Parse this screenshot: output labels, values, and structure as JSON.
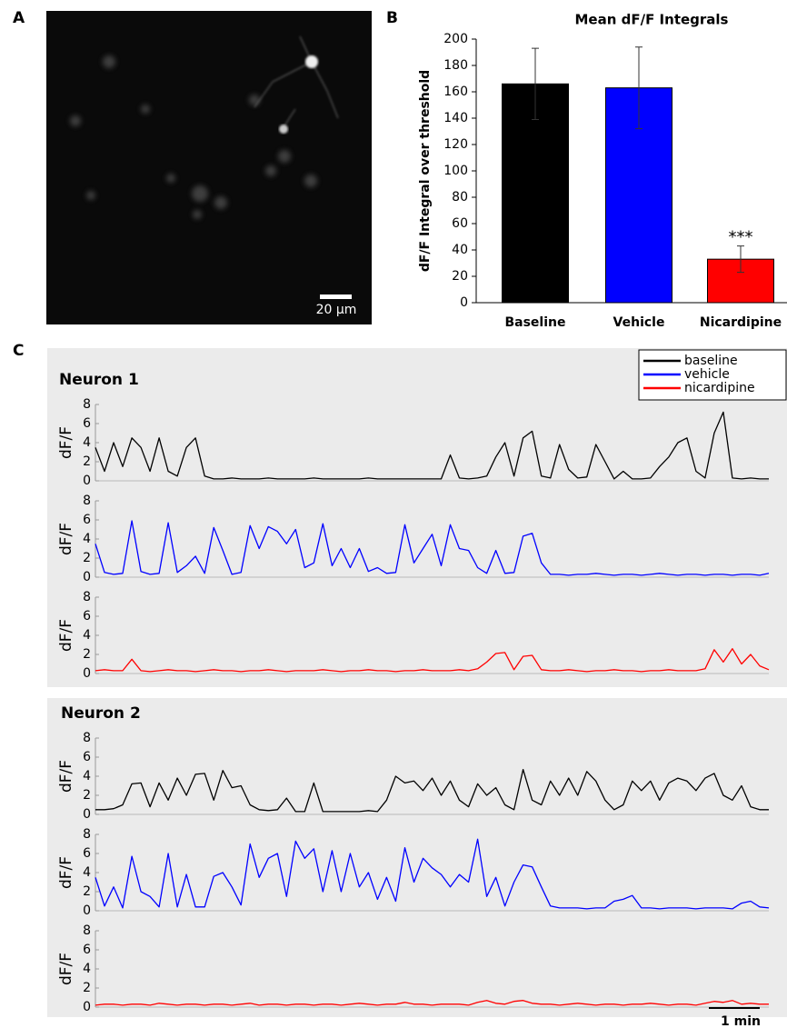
{
  "panel_labels": [
    "A",
    "B",
    "C"
  ],
  "image": {
    "scale_bar": "20 µm"
  },
  "chart_data": [
    {
      "type": "bar",
      "title": "Mean dF/F Integrals",
      "ylabel": "dF/F Integral over threshold",
      "categories": [
        "Baseline",
        "Vehicle",
        "Nicardipine"
      ],
      "values": [
        166,
        163,
        33
      ],
      "errors": [
        27,
        31,
        10
      ],
      "colors": [
        "#000000",
        "#0000ff",
        "#ff0000"
      ],
      "annotation": "***",
      "ylim": [
        0,
        200
      ],
      "yticks": [
        0,
        20,
        40,
        60,
        80,
        100,
        120,
        140,
        160,
        180,
        200
      ]
    },
    {
      "type": "line",
      "title": "Neuron 1",
      "ylabel": "dF/F",
      "ylim": [
        0,
        8
      ],
      "yticks": [
        0,
        2,
        4,
        6,
        8
      ],
      "legend": true,
      "legend_position": "top-right",
      "series": [
        {
          "name": "baseline",
          "color": "#000000",
          "values": [
            3.5,
            1,
            4,
            1.5,
            4.5,
            3.5,
            1,
            4.5,
            1,
            0.5,
            3.5,
            4.5,
            0.5,
            0.2,
            0.2,
            0.3,
            0.2,
            0.2,
            0.2,
            0.3,
            0.2,
            0.2,
            0.2,
            0.2,
            0.3,
            0.2,
            0.2,
            0.2,
            0.2,
            0.2,
            0.3,
            0.2,
            0.2,
            0.2,
            0.2,
            0.2,
            0.2,
            0.2,
            0.2,
            2.7,
            0.3,
            0.2,
            0.3,
            0.5,
            2.5,
            4,
            0.5,
            4.5,
            5.2,
            0.5,
            0.3,
            3.8,
            1.2,
            0.3,
            0.4,
            3.8,
            2,
            0.2,
            1,
            0.2,
            0.2,
            0.3,
            1.5,
            2.5,
            4,
            4.5,
            1,
            0.3,
            5,
            7.2,
            0.3,
            0.2,
            0.3,
            0.2,
            0.2
          ]
        },
        {
          "name": "vehicle",
          "color": "#0000ff",
          "values": [
            3.5,
            0.5,
            0.3,
            0.4,
            5.9,
            0.6,
            0.3,
            0.4,
            5.7,
            0.5,
            1.2,
            2.2,
            0.4,
            5.2,
            2.8,
            0.3,
            0.5,
            5.4,
            3,
            5.3,
            4.8,
            3.5,
            5,
            1,
            1.5,
            5.6,
            1.2,
            3,
            1,
            3,
            0.6,
            1,
            0.4,
            0.5,
            5.5,
            1.5,
            3,
            4.5,
            1.2,
            5.5,
            3,
            2.8,
            1,
            0.4,
            2.8,
            0.4,
            0.5,
            4.3,
            4.6,
            1.5,
            0.3,
            0.3,
            0.2,
            0.3,
            0.3,
            0.4,
            0.3,
            0.2,
            0.3,
            0.3,
            0.2,
            0.3,
            0.4,
            0.3,
            0.2,
            0.3,
            0.3,
            0.2,
            0.3,
            0.3,
            0.2,
            0.3,
            0.3,
            0.2,
            0.4
          ]
        },
        {
          "name": "nicardipine",
          "color": "#ff0000",
          "values": [
            0.3,
            0.4,
            0.3,
            0.3,
            1.5,
            0.3,
            0.2,
            0.3,
            0.4,
            0.3,
            0.3,
            0.2,
            0.3,
            0.4,
            0.3,
            0.3,
            0.2,
            0.3,
            0.3,
            0.4,
            0.3,
            0.2,
            0.3,
            0.3,
            0.3,
            0.4,
            0.3,
            0.2,
            0.3,
            0.3,
            0.4,
            0.3,
            0.3,
            0.2,
            0.3,
            0.3,
            0.4,
            0.3,
            0.3,
            0.3,
            0.4,
            0.3,
            0.5,
            1.2,
            2.1,
            2.2,
            0.4,
            1.8,
            1.9,
            0.4,
            0.3,
            0.3,
            0.4,
            0.3,
            0.2,
            0.3,
            0.3,
            0.4,
            0.3,
            0.3,
            0.2,
            0.3,
            0.3,
            0.4,
            0.3,
            0.3,
            0.3,
            0.5,
            2.5,
            1.2,
            2.6,
            1,
            2,
            0.8,
            0.4
          ]
        }
      ]
    },
    {
      "type": "line",
      "title": "Neuron 2",
      "ylabel": "dF/F",
      "ylim": [
        0,
        8
      ],
      "yticks": [
        0,
        2,
        4,
        6,
        8
      ],
      "legend": false,
      "x_scale_bar": "1 min",
      "series": [
        {
          "name": "baseline",
          "color": "#000000",
          "values": [
            0.5,
            0.5,
            0.6,
            1,
            3.2,
            3.3,
            0.8,
            3.3,
            1.5,
            3.8,
            2,
            4.2,
            4.3,
            1.5,
            4.6,
            2.8,
            3,
            1,
            0.5,
            0.4,
            0.5,
            1.7,
            0.3,
            0.3,
            3.3,
            0.3,
            0.3,
            0.3,
            0.3,
            0.3,
            0.4,
            0.3,
            1.5,
            4,
            3.3,
            3.5,
            2.5,
            3.8,
            2,
            3.5,
            1.5,
            0.8,
            3.2,
            2,
            2.8,
            1,
            0.5,
            4.7,
            1.5,
            1,
            3.5,
            2,
            3.8,
            2,
            4.5,
            3.5,
            1.5,
            0.5,
            1,
            3.5,
            2.5,
            3.5,
            1.5,
            3.3,
            3.8,
            3.5,
            2.5,
            3.8,
            4.3,
            2,
            1.5,
            3,
            0.8,
            0.5,
            0.5
          ]
        },
        {
          "name": "vehicle",
          "color": "#0000ff",
          "values": [
            3.5,
            0.5,
            2.5,
            0.3,
            5.7,
            2,
            1.5,
            0.4,
            6,
            0.4,
            3.8,
            0.4,
            0.4,
            3.6,
            4,
            2.5,
            0.6,
            7,
            3.5,
            5.5,
            6,
            1.5,
            7.3,
            5.5,
            6.5,
            2,
            6.3,
            2,
            6,
            2.5,
            4,
            1.2,
            3.5,
            1,
            6.6,
            3,
            5.5,
            4.5,
            3.8,
            2.5,
            3.8,
            3,
            7.5,
            1.5,
            3.5,
            0.5,
            3,
            4.8,
            4.6,
            2.5,
            0.5,
            0.3,
            0.3,
            0.3,
            0.2,
            0.3,
            0.3,
            1,
            1.2,
            1.6,
            0.3,
            0.3,
            0.2,
            0.3,
            0.3,
            0.3,
            0.2,
            0.3,
            0.3,
            0.3,
            0.2,
            0.8,
            1,
            0.4,
            0.3
          ]
        },
        {
          "name": "nicardipine",
          "color": "#ff0000",
          "values": [
            0.2,
            0.3,
            0.3,
            0.2,
            0.3,
            0.3,
            0.2,
            0.4,
            0.3,
            0.2,
            0.3,
            0.3,
            0.2,
            0.3,
            0.3,
            0.2,
            0.3,
            0.4,
            0.2,
            0.3,
            0.3,
            0.2,
            0.3,
            0.3,
            0.2,
            0.3,
            0.3,
            0.2,
            0.3,
            0.4,
            0.3,
            0.2,
            0.3,
            0.3,
            0.5,
            0.3,
            0.3,
            0.2,
            0.3,
            0.3,
            0.3,
            0.2,
            0.5,
            0.7,
            0.4,
            0.3,
            0.6,
            0.7,
            0.4,
            0.3,
            0.3,
            0.2,
            0.3,
            0.4,
            0.3,
            0.2,
            0.3,
            0.3,
            0.2,
            0.3,
            0.3,
            0.4,
            0.3,
            0.2,
            0.3,
            0.3,
            0.2,
            0.4,
            0.6,
            0.5,
            0.7,
            0.3,
            0.4,
            0.3,
            0.3
          ]
        }
      ]
    }
  ]
}
